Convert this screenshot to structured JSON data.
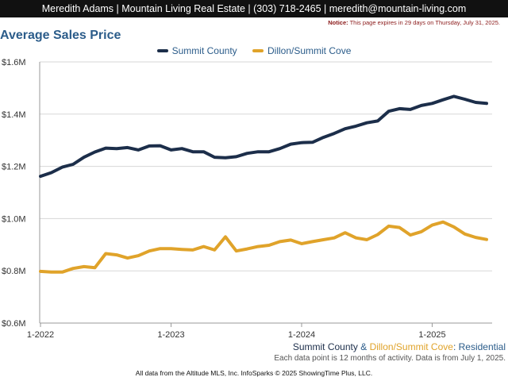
{
  "header": {
    "contact": "Meredith Adams | Mountain Living Real Estate | (303) 718-2465 | meredith@mountain-living.com",
    "notice_label": "Notice:",
    "notice_text": "This page expires in 29 days on Thursday, July 31, 2025."
  },
  "subtitle": {
    "series1": "Summit County",
    "amp": "&",
    "series2": "Dillon/Summit Cove",
    "sep": ":",
    "type": "Residential"
  },
  "note": "Each data point is 12 months of activity. Data is from July 1, 2025.",
  "footer": "All data from the Altitude MLS, Inc. InfoSparks © 2025 ShowingTime Plus, LLC.",
  "colors": {
    "summit": "#1c2e4a",
    "dillon": "#e0a32a",
    "title": "#2b5c8a"
  },
  "chart_data": {
    "type": "line",
    "title": "Average Sales Price",
    "x_ticks": [
      "1-2022",
      "1-2023",
      "1-2024",
      "1-2025"
    ],
    "x_tick_index": [
      0,
      12,
      24,
      36
    ],
    "y_ticks": [
      "$0.6M",
      "$0.8M",
      "$1.0M",
      "$1.2M",
      "$1.4M",
      "$1.6M"
    ],
    "y_tick_values": [
      600000,
      800000,
      1000000,
      1200000,
      1400000,
      1600000
    ],
    "ylim": [
      600000,
      1600000
    ],
    "x_count": 42,
    "legend_position": "top-center",
    "series": [
      {
        "name": "Summit County",
        "color": "#1c2e4a",
        "values": [
          1162000,
          1176000,
          1197000,
          1208000,
          1235000,
          1255000,
          1270000,
          1268000,
          1272000,
          1263000,
          1278000,
          1279000,
          1263000,
          1268000,
          1256000,
          1256000,
          1235000,
          1233000,
          1237000,
          1250000,
          1256000,
          1256000,
          1268000,
          1285000,
          1291000,
          1292000,
          1311000,
          1326000,
          1344000,
          1354000,
          1367000,
          1374000,
          1411000,
          1421000,
          1418000,
          1433000,
          1441000,
          1455000,
          1468000,
          1457000,
          1445000,
          1441000
        ]
      },
      {
        "name": "Dillon/Summit Cove",
        "color": "#e0a32a",
        "values": [
          798000,
          795000,
          795000,
          809000,
          816000,
          812000,
          866000,
          861000,
          849000,
          858000,
          876000,
          885000,
          885000,
          882000,
          880000,
          893000,
          880000,
          930000,
          876000,
          884000,
          893000,
          898000,
          912000,
          918000,
          904000,
          912000,
          919000,
          926000,
          946000,
          926000,
          919000,
          939000,
          971000,
          966000,
          937000,
          950000,
          975000,
          987000,
          968000,
          941000,
          928000,
          920000
        ]
      }
    ]
  }
}
